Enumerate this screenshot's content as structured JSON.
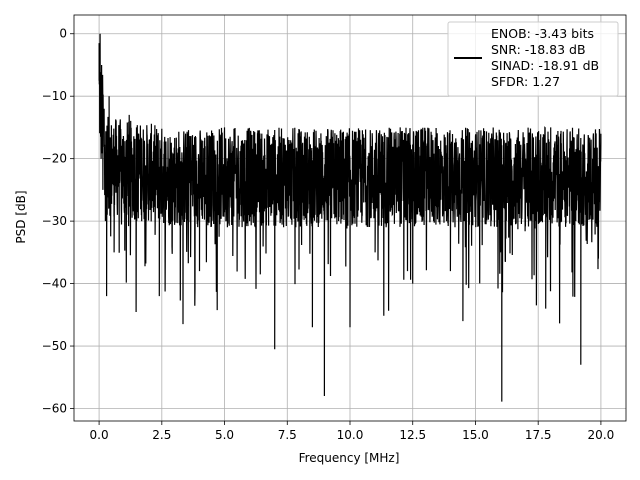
{
  "chart_data": {
    "type": "line",
    "title": "",
    "xlabel": "Frequency [MHz]",
    "ylabel": "PSD [dB]",
    "xlim": [
      -1.0,
      21.0
    ],
    "ylim": [
      -62.0,
      3.0
    ],
    "xticks": [
      "0.0",
      "2.5",
      "5.0",
      "7.5",
      "10.0",
      "12.5",
      "15.0",
      "17.5",
      "20.0"
    ],
    "yticks": [
      "0",
      "−10",
      "−20",
      "−30",
      "−40",
      "−50",
      "−60"
    ],
    "grid": true,
    "legend_position": "top-right",
    "legend_lines": [
      "ENOB: -3.43 bits",
      "SNR: -18.83 dB",
      "SINAD: -18.91 dB",
      "SFDR: 1.27"
    ],
    "series": [
      {
        "color": "#000000",
        "description_of_shape": "dense noise trace across 0–20 MHz, mostly between -12 and -32 dB",
        "x": [
          0.0,
          0.02,
          0.04,
          0.06,
          0.08,
          0.1,
          0.15,
          0.2,
          0.25,
          0.3,
          0.4,
          0.5,
          0.6,
          0.8,
          1.0,
          1.2,
          1.5,
          2.0,
          2.4,
          3.0,
          4.0,
          5.0,
          6.0,
          7.0,
          8.0,
          8.5,
          8.98,
          9.5,
          10.0,
          10.5,
          11.0,
          12.0,
          12.5,
          13.0,
          14.0,
          14.5,
          15.0,
          16.0,
          16.05,
          17.0,
          17.8,
          18.0,
          19.0,
          19.2,
          19.9,
          20.0
        ],
        "y": [
          -1.5,
          -3.0,
          0.0,
          -8.0,
          -20.0,
          -5.0,
          -25.0,
          -12.0,
          -30.0,
          -42.0,
          -10.0,
          -20.0,
          -35.0,
          -15.0,
          -28.0,
          -13.0,
          -30.0,
          -18.0,
          -42.0,
          -20.0,
          -38.0,
          -15.0,
          -30.0,
          -50.5,
          -22.0,
          -47.0,
          -58.0,
          -25.0,
          -47.0,
          -20.0,
          -35.0,
          -15.0,
          -40.0,
          -22.0,
          -38.0,
          -46.0,
          -18.0,
          -35.0,
          -58.9,
          -20.0,
          -44.0,
          -15.0,
          -30.0,
          -53.0,
          -36.0,
          -16.0
        ]
      }
    ]
  }
}
